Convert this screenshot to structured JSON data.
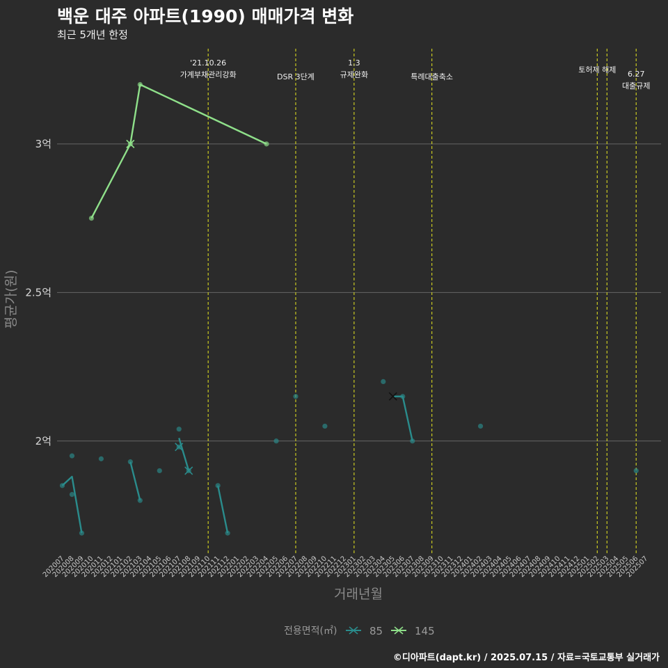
{
  "title": "백운 대주 아파트(1990) 매매가격 변화",
  "subtitle": "최근 5개년 한정",
  "caption": "©디아파트(dapt.kr) / 2025.07.15 / 자료=국토교통부 실거래가",
  "colors": {
    "background": "#2b2b2b",
    "series85": "#2a8c8c",
    "series145": "#8fe08a",
    "eventLine": "#d8d820",
    "grid": "#666666"
  },
  "chart_data": {
    "type": "line",
    "xlabel": "거래년월",
    "ylabel": "평균가(원)",
    "ylim": [
      1.62,
      3.33
    ],
    "yticks": [
      {
        "value": 2.0,
        "label": "2억"
      },
      {
        "value": 2.5,
        "label": "2.5억"
      },
      {
        "value": 3.0,
        "label": "3억"
      }
    ],
    "categories": [
      "202007",
      "202008",
      "202009",
      "202010",
      "202011",
      "202012",
      "202101",
      "202102",
      "202103",
      "202104",
      "202105",
      "202106",
      "202107",
      "202108",
      "202109",
      "202110",
      "202111",
      "202112",
      "202201",
      "202202",
      "202203",
      "202204",
      "202205",
      "202206",
      "202207",
      "202208",
      "202209",
      "202210",
      "202211",
      "202212",
      "202301",
      "202302",
      "202303",
      "202304",
      "202305",
      "202306",
      "202307",
      "202308",
      "202309",
      "202310",
      "202311",
      "202312",
      "202401",
      "202402",
      "202403",
      "202404",
      "202405",
      "202406",
      "202407",
      "202408",
      "202409",
      "202410",
      "202411",
      "202412",
      "202501",
      "202502",
      "202503",
      "202504",
      "202505",
      "202506",
      "202507"
    ],
    "legend": {
      "title": "전용면적(㎡)",
      "items": [
        "85",
        "145"
      ]
    },
    "series": [
      {
        "name": "85",
        "line": [
          {
            "x": "202007",
            "y": 1.85
          },
          {
            "x": "202008",
            "y": 1.88
          },
          {
            "x": "202009",
            "y": 1.69
          },
          {
            "x": "202011",
            "y": 1.94
          },
          {
            "x": "202102",
            "y": 1.93
          },
          {
            "x": "202103",
            "y": 1.8
          },
          {
            "x": "202107",
            "y": 2.01
          },
          {
            "x": "202108",
            "y": 1.9
          },
          {
            "x": "202111",
            "y": 1.85
          },
          {
            "x": "202112",
            "y": 1.69
          },
          {
            "x": "202305",
            "y": 2.15
          },
          {
            "x": "202306",
            "y": 2.15
          },
          {
            "x": "202307",
            "y": 2.0
          }
        ],
        "points": [
          {
            "x": "202007",
            "y": 1.85
          },
          {
            "x": "202008",
            "y": 1.95
          },
          {
            "x": "202008",
            "y": 1.82
          },
          {
            "x": "202009",
            "y": 1.69
          },
          {
            "x": "202011",
            "y": 1.94
          },
          {
            "x": "202102",
            "y": 1.93
          },
          {
            "x": "202103",
            "y": 1.8
          },
          {
            "x": "202105",
            "y": 1.9
          },
          {
            "x": "202107",
            "y": 2.04
          },
          {
            "x": "202107",
            "y": 1.98
          },
          {
            "x": "202108",
            "y": 1.9
          },
          {
            "x": "202111",
            "y": 1.85
          },
          {
            "x": "202112",
            "y": 1.69
          },
          {
            "x": "202205",
            "y": 2.0
          },
          {
            "x": "202207",
            "y": 2.15
          },
          {
            "x": "202210",
            "y": 2.05
          },
          {
            "x": "202304",
            "y": 2.2
          },
          {
            "x": "202306",
            "y": 2.15
          },
          {
            "x": "202307",
            "y": 2.0
          },
          {
            "x": "202402",
            "y": 2.05
          },
          {
            "x": "202506",
            "y": 1.9
          }
        ],
        "crosses": [
          {
            "x": "202107",
            "y": 1.98
          },
          {
            "x": "202108",
            "y": 1.9
          },
          {
            "x": "202305",
            "y": 2.15
          }
        ]
      },
      {
        "name": "145",
        "line": [
          {
            "x": "202010",
            "y": 2.75
          },
          {
            "x": "202102",
            "y": 3.0
          },
          {
            "x": "202103",
            "y": 3.2
          },
          {
            "x": "202204",
            "y": 3.0
          }
        ],
        "points": [
          {
            "x": "202010",
            "y": 2.75
          },
          {
            "x": "202102",
            "y": 3.0
          },
          {
            "x": "202103",
            "y": 3.2
          },
          {
            "x": "202204",
            "y": 3.0
          }
        ],
        "crosses": [
          {
            "x": "202102",
            "y": 3.0
          }
        ]
      }
    ],
    "events": [
      {
        "x": "202110",
        "label_lines": [
          "'21.10.26",
          "가계부채관리강화"
        ],
        "level": 0
      },
      {
        "x": "202207",
        "label_lines": [
          "DSR 3단계"
        ],
        "level": 2
      },
      {
        "x": "202301",
        "label_lines": [
          "1.3",
          "규제완화"
        ],
        "level": 0
      },
      {
        "x": "202309",
        "label_lines": [
          "특례대출축소"
        ],
        "level": 2
      },
      {
        "x": "202502",
        "label_lines": [
          "토허제 해제"
        ],
        "level": 1
      },
      {
        "x": "202503",
        "label_lines": [],
        "level": 1
      },
      {
        "x": "202506",
        "label_lines": [
          "6.27",
          "대출규제"
        ],
        "level": 1.6
      }
    ]
  }
}
